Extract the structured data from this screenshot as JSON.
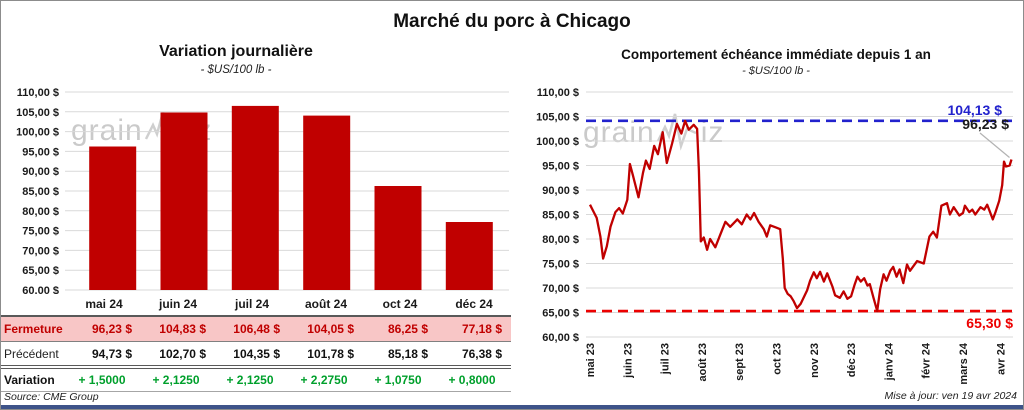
{
  "header": {
    "title": "Marché du porc à Chicago"
  },
  "footer": {
    "source": "Source: CME Group",
    "updated": "Mise à jour: ven 19 avr 2024"
  },
  "watermark": {
    "text": "grain",
    "suffix": "iz"
  },
  "colors": {
    "bar": "#C00000",
    "line": "#C00000",
    "max_line": "#2222CD",
    "min_line": "#ED0000",
    "close_bg": "#F8C6C6",
    "close_text": "#C00000",
    "variation_text": "#00A02C",
    "grid": "#D9D9D9",
    "leader": "#B3B3B3",
    "footer_bar": "#3E5389"
  },
  "chart_data": [
    {
      "type": "bar",
      "title": "Variation  journalière",
      "subtitle": "- $US/100 lb -",
      "categories": [
        "mai 24",
        "juin 24",
        "juil 24",
        "août 24",
        "oct 24",
        "déc 24"
      ],
      "values": [
        96.23,
        104.83,
        106.48,
        104.05,
        86.25,
        77.18
      ],
      "ylim": [
        60,
        110
      ],
      "ytick_step": 5,
      "grid": true,
      "legend": "none"
    },
    {
      "type": "line",
      "title": "Comportement  échéance immédiate depuis 1 an",
      "subtitle": "- $US/100 lb -",
      "x_labels": [
        "mai 23",
        "juin 23",
        "juil 23",
        "août 23",
        "sept 23",
        "oct 23",
        "nov 23",
        "déc 23",
        "janv 24",
        "févr 24",
        "mars 24",
        "avr 24"
      ],
      "ylim": [
        60,
        110
      ],
      "ytick_step": 5,
      "grid": true,
      "series": [
        {
          "name": "Échéance immédiate",
          "color": "#C00000",
          "points": [
            [
              0,
              87
            ],
            [
              0.08,
              85.8
            ],
            [
              0.18,
              84.3
            ],
            [
              0.28,
              80.5
            ],
            [
              0.35,
              76
            ],
            [
              0.45,
              78.5
            ],
            [
              0.55,
              82.5
            ],
            [
              0.68,
              85.5
            ],
            [
              0.78,
              86.3
            ],
            [
              0.88,
              85.2
            ],
            [
              1,
              88
            ],
            [
              1.07,
              95.3
            ],
            [
              1.15,
              93
            ],
            [
              1.3,
              88.5
            ],
            [
              1.42,
              93.5
            ],
            [
              1.5,
              96
            ],
            [
              1.6,
              94.3
            ],
            [
              1.72,
              99
            ],
            [
              1.82,
              97.3
            ],
            [
              1.95,
              101.8
            ],
            [
              2.06,
              95.5
            ],
            [
              2.2,
              99.5
            ],
            [
              2.33,
              103.5
            ],
            [
              2.45,
              101.5
            ],
            [
              2.55,
              104.1
            ],
            [
              2.65,
              102.3
            ],
            [
              2.78,
              103.3
            ],
            [
              2.87,
              102.5
            ],
            [
              2.92,
              94
            ],
            [
              2.97,
              79.5
            ],
            [
              3.05,
              80.3
            ],
            [
              3.14,
              77.8
            ],
            [
              3.22,
              80
            ],
            [
              3.36,
              78.3
            ],
            [
              3.5,
              81
            ],
            [
              3.63,
              83.5
            ],
            [
              3.76,
              82.5
            ],
            [
              3.95,
              84
            ],
            [
              4.07,
              83
            ],
            [
              4.2,
              85
            ],
            [
              4.3,
              84
            ],
            [
              4.4,
              85.3
            ],
            [
              4.52,
              83.5
            ],
            [
              4.66,
              82
            ],
            [
              4.74,
              80.5
            ],
            [
              4.83,
              82.8
            ],
            [
              5,
              82.3
            ],
            [
              5.1,
              82
            ],
            [
              5.17,
              76
            ],
            [
              5.22,
              70
            ],
            [
              5.3,
              68.8
            ],
            [
              5.38,
              68.3
            ],
            [
              5.46,
              67.3
            ],
            [
              5.55,
              65.9
            ],
            [
              5.65,
              66.8
            ],
            [
              5.82,
              69.5
            ],
            [
              5.9,
              71.5
            ],
            [
              6,
              73.2
            ],
            [
              6.08,
              72
            ],
            [
              6.17,
              73.3
            ],
            [
              6.27,
              71.3
            ],
            [
              6.36,
              73
            ],
            [
              6.5,
              70.3
            ],
            [
              6.57,
              68.5
            ],
            [
              6.7,
              68
            ],
            [
              6.8,
              69.3
            ],
            [
              6.9,
              67.8
            ],
            [
              7,
              68.3
            ],
            [
              7.1,
              70.8
            ],
            [
              7.17,
              72.3
            ],
            [
              7.26,
              71.3
            ],
            [
              7.35,
              72
            ],
            [
              7.44,
              70.5
            ],
            [
              7.5,
              70.8
            ],
            [
              7.6,
              68
            ],
            [
              7.7,
              65.3
            ],
            [
              7.78,
              69.8
            ],
            [
              7.87,
              72.8
            ],
            [
              7.95,
              71.5
            ],
            [
              8.05,
              73.5
            ],
            [
              8.13,
              74.3
            ],
            [
              8.22,
              72.3
            ],
            [
              8.3,
              73.8
            ],
            [
              8.4,
              71
            ],
            [
              8.5,
              74.8
            ],
            [
              8.58,
              73.5
            ],
            [
              8.77,
              75.5
            ],
            [
              8.95,
              75
            ],
            [
              9.1,
              80.5
            ],
            [
              9.2,
              81.5
            ],
            [
              9.3,
              80.3
            ],
            [
              9.42,
              86.8
            ],
            [
              9.57,
              87.3
            ],
            [
              9.65,
              85
            ],
            [
              9.75,
              86.5
            ],
            [
              9.9,
              84.8
            ],
            [
              10,
              85.3
            ],
            [
              10.05,
              86.8
            ],
            [
              10.17,
              85.5
            ],
            [
              10.25,
              86
            ],
            [
              10.33,
              85
            ],
            [
              10.47,
              86.5
            ],
            [
              10.57,
              86
            ],
            [
              10.65,
              87
            ],
            [
              10.8,
              84
            ],
            [
              10.87,
              85.5
            ],
            [
              10.97,
              87.8
            ],
            [
              11.05,
              91
            ],
            [
              11.1,
              95.8
            ],
            [
              11.15,
              94.8
            ],
            [
              11.25,
              95
            ],
            [
              11.3,
              96.23
            ]
          ]
        }
      ],
      "ref_lines": [
        {
          "id": "max",
          "value": 104.13,
          "label": "104,13 $",
          "color": "#2222CD",
          "style": "dashed"
        },
        {
          "id": "min",
          "value": 65.3,
          "label": "65,30 $",
          "color": "#ED0000",
          "style": "dashed"
        }
      ],
      "end_label": {
        "value": 96.23,
        "text": "96,23 $"
      }
    }
  ],
  "table": {
    "columns": [
      "mai 24",
      "juin 24",
      "juil 24",
      "août 24",
      "oct 24",
      "déc 24"
    ],
    "rows": [
      {
        "id": "fermeture",
        "label": "Fermeture",
        "values": [
          "96,23 $",
          "104,83 $",
          "106,48 $",
          "104,05 $",
          "86,25 $",
          "77,18 $"
        ]
      },
      {
        "id": "precedent",
        "label": "Précédent",
        "values": [
          "94,73 $",
          "102,70 $",
          "104,35 $",
          "101,78 $",
          "85,18 $",
          "76,38 $"
        ]
      },
      {
        "id": "variation",
        "label": "Variation",
        "values": [
          "+ 1,5000",
          "+ 2,1250",
          "+ 2,1250",
          "+ 2,2750",
          "+ 1,0750",
          "+ 0,8000"
        ]
      }
    ]
  }
}
